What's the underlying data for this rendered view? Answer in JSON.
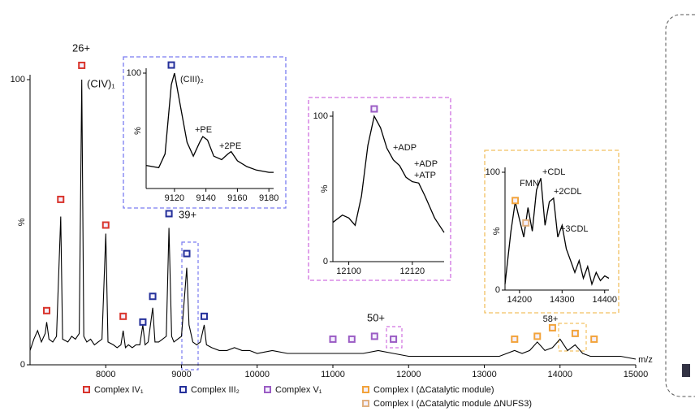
{
  "chart_data": [
    {
      "type": "line",
      "xlabel": "m/z",
      "ylabel": "%",
      "color": "#000000",
      "xlim": [
        7000,
        15000
      ],
      "xticks": [
        8000,
        9000,
        10000,
        11000,
        12000,
        13000,
        14000,
        15000
      ],
      "ylim": [
        0,
        100
      ],
      "yticks": [
        0,
        100
      ],
      "x": [
        7000,
        7050,
        7100,
        7150,
        7200,
        7220,
        7250,
        7300,
        7350,
        7405,
        7430,
        7500,
        7550,
        7600,
        7650,
        7683,
        7710,
        7750,
        7800,
        7850,
        7900,
        7950,
        8000,
        8030,
        8100,
        8150,
        8200,
        8230,
        8260,
        8300,
        8350,
        8400,
        8450,
        8490,
        8520,
        8560,
        8620,
        8650,
        8700,
        8750,
        8800,
        8835,
        8870,
        8900,
        8950,
        9000,
        9070,
        9100,
        9150,
        9200,
        9250,
        9300,
        9330,
        9400,
        9500,
        9600,
        9700,
        9800,
        9900,
        10000,
        10200,
        10400,
        10600,
        10800,
        11000,
        11200,
        11400,
        11600,
        11800,
        12000,
        12200,
        12400,
        12600,
        12800,
        13000,
        13200,
        13400,
        13500,
        13600,
        13700,
        13800,
        13900,
        14000,
        14100,
        14200,
        14300,
        14400,
        14600,
        14800,
        15000
      ],
      "values": [
        5,
        9,
        12,
        8,
        11,
        15,
        9,
        8,
        10,
        52,
        9,
        8,
        10,
        9,
        11,
        100,
        10,
        8,
        9,
        7,
        8,
        9,
        46,
        8,
        7,
        6,
        7,
        12,
        6,
        7,
        6,
        7,
        7,
        14,
        7,
        8,
        20,
        8,
        8,
        9,
        10,
        48,
        10,
        8,
        9,
        10,
        34,
        14,
        8,
        7,
        8,
        14,
        7,
        6,
        5,
        5,
        6,
        5,
        5,
        4,
        5,
        4,
        4,
        4,
        4,
        4,
        4,
        5,
        4,
        3,
        3,
        3,
        3,
        3,
        3,
        3,
        5,
        4,
        5,
        8,
        5,
        6,
        9,
        5,
        7,
        4,
        3,
        3,
        3,
        2
      ],
      "markers": [
        {
          "name": "Complex IV₁",
          "color": "#d9342b",
          "x": [
            7220,
            7405,
            7683,
            8000,
            8230
          ],
          "y": [
            19,
            58,
            105,
            49,
            17
          ]
        },
        {
          "name": "Complex III₂",
          "color": "#24309a",
          "x": [
            8490,
            8620,
            8835,
            9070,
            9300
          ],
          "y": [
            15,
            24,
            53,
            39,
            17
          ]
        },
        {
          "name": "Complex V₁",
          "color": "#9b5cc4",
          "x": [
            11000,
            11250,
            11550,
            11800
          ],
          "y": [
            9,
            9,
            10,
            9
          ]
        },
        {
          "name": "Complex I (ΔCatalytic module)",
          "color": "#f2a33a",
          "x": [
            13400,
            13700,
            13900,
            14200,
            14450
          ],
          "y": [
            9,
            10,
            13,
            11,
            9
          ]
        },
        {
          "name": "Complex I (ΔCatalytic module ΔNUFS3)",
          "color": "#e0b080",
          "x": [],
          "y": []
        }
      ],
      "annotations": [
        "26+",
        "(CIV)₁",
        "39+",
        "50+",
        "58+"
      ]
    },
    {
      "type": "line",
      "ylabel": "%",
      "color": "#000000",
      "xlim": [
        9102,
        9183
      ],
      "xticks": [
        9120,
        9140,
        9160,
        9180
      ],
      "ylim": [
        0,
        100
      ],
      "yticks": [
        100
      ],
      "x": [
        9102,
        9110,
        9114,
        9118,
        9120,
        9124,
        9128,
        9132,
        9136,
        9138,
        9141,
        9145,
        9150,
        9154,
        9156,
        9160,
        9166,
        9172,
        9180,
        9183
      ],
      "values": [
        20,
        18,
        30,
        90,
        100,
        70,
        40,
        28,
        40,
        45,
        42,
        28,
        25,
        30,
        32,
        24,
        19,
        16,
        14,
        14
      ],
      "markers": [
        {
          "color": "#24309a",
          "x": [
            9118
          ],
          "y": [
            107
          ]
        }
      ],
      "annotations": [
        "(CIII)₂",
        "+PE",
        "+2PE"
      ]
    },
    {
      "type": "line",
      "ylabel": "%",
      "color": "#000000",
      "xlim": [
        12095,
        12130
      ],
      "xticks": [
        12100,
        12120
      ],
      "ylim": [
        0,
        100
      ],
      "yticks": [
        0,
        100
      ],
      "x": [
        12095,
        12098,
        12100,
        12102,
        12104,
        12106,
        12108,
        12110,
        12112,
        12114,
        12116,
        12118,
        12120,
        12122,
        12124,
        12127,
        12130
      ],
      "values": [
        27,
        32,
        30,
        25,
        45,
        80,
        100,
        92,
        78,
        70,
        66,
        58,
        55,
        54,
        45,
        30,
        20
      ],
      "markers": [
        {
          "color": "#9b5cc4",
          "x": [
            12108
          ],
          "y": [
            105
          ]
        }
      ],
      "annotations": [
        "+ADP",
        "+ADP",
        "+ATP"
      ]
    },
    {
      "type": "line",
      "ylabel": "%",
      "color": "#000000",
      "xlim": [
        14166,
        14410
      ],
      "xticks": [
        14200,
        14300,
        14400
      ],
      "ylim": [
        0,
        100
      ],
      "yticks": [
        0,
        100
      ],
      "x": [
        14166,
        14180,
        14190,
        14200,
        14210,
        14220,
        14230,
        14240,
        14250,
        14260,
        14270,
        14280,
        14290,
        14300,
        14310,
        14320,
        14330,
        14340,
        14350,
        14360,
        14370,
        14380,
        14390,
        14400,
        14410
      ],
      "values": [
        5,
        50,
        75,
        60,
        45,
        70,
        50,
        85,
        95,
        55,
        75,
        78,
        45,
        55,
        35,
        25,
        15,
        25,
        10,
        20,
        5,
        15,
        8,
        12,
        10
      ],
      "markers": [
        {
          "color": "#f2a33a",
          "x": [
            14190
          ],
          "y": [
            76
          ]
        },
        {
          "color": "#e0b080",
          "x": [
            14215
          ],
          "y": [
            57
          ]
        }
      ],
      "annotations": [
        "FMN",
        "+CDL",
        "+2CDL",
        "+3CDL"
      ]
    }
  ]
}
